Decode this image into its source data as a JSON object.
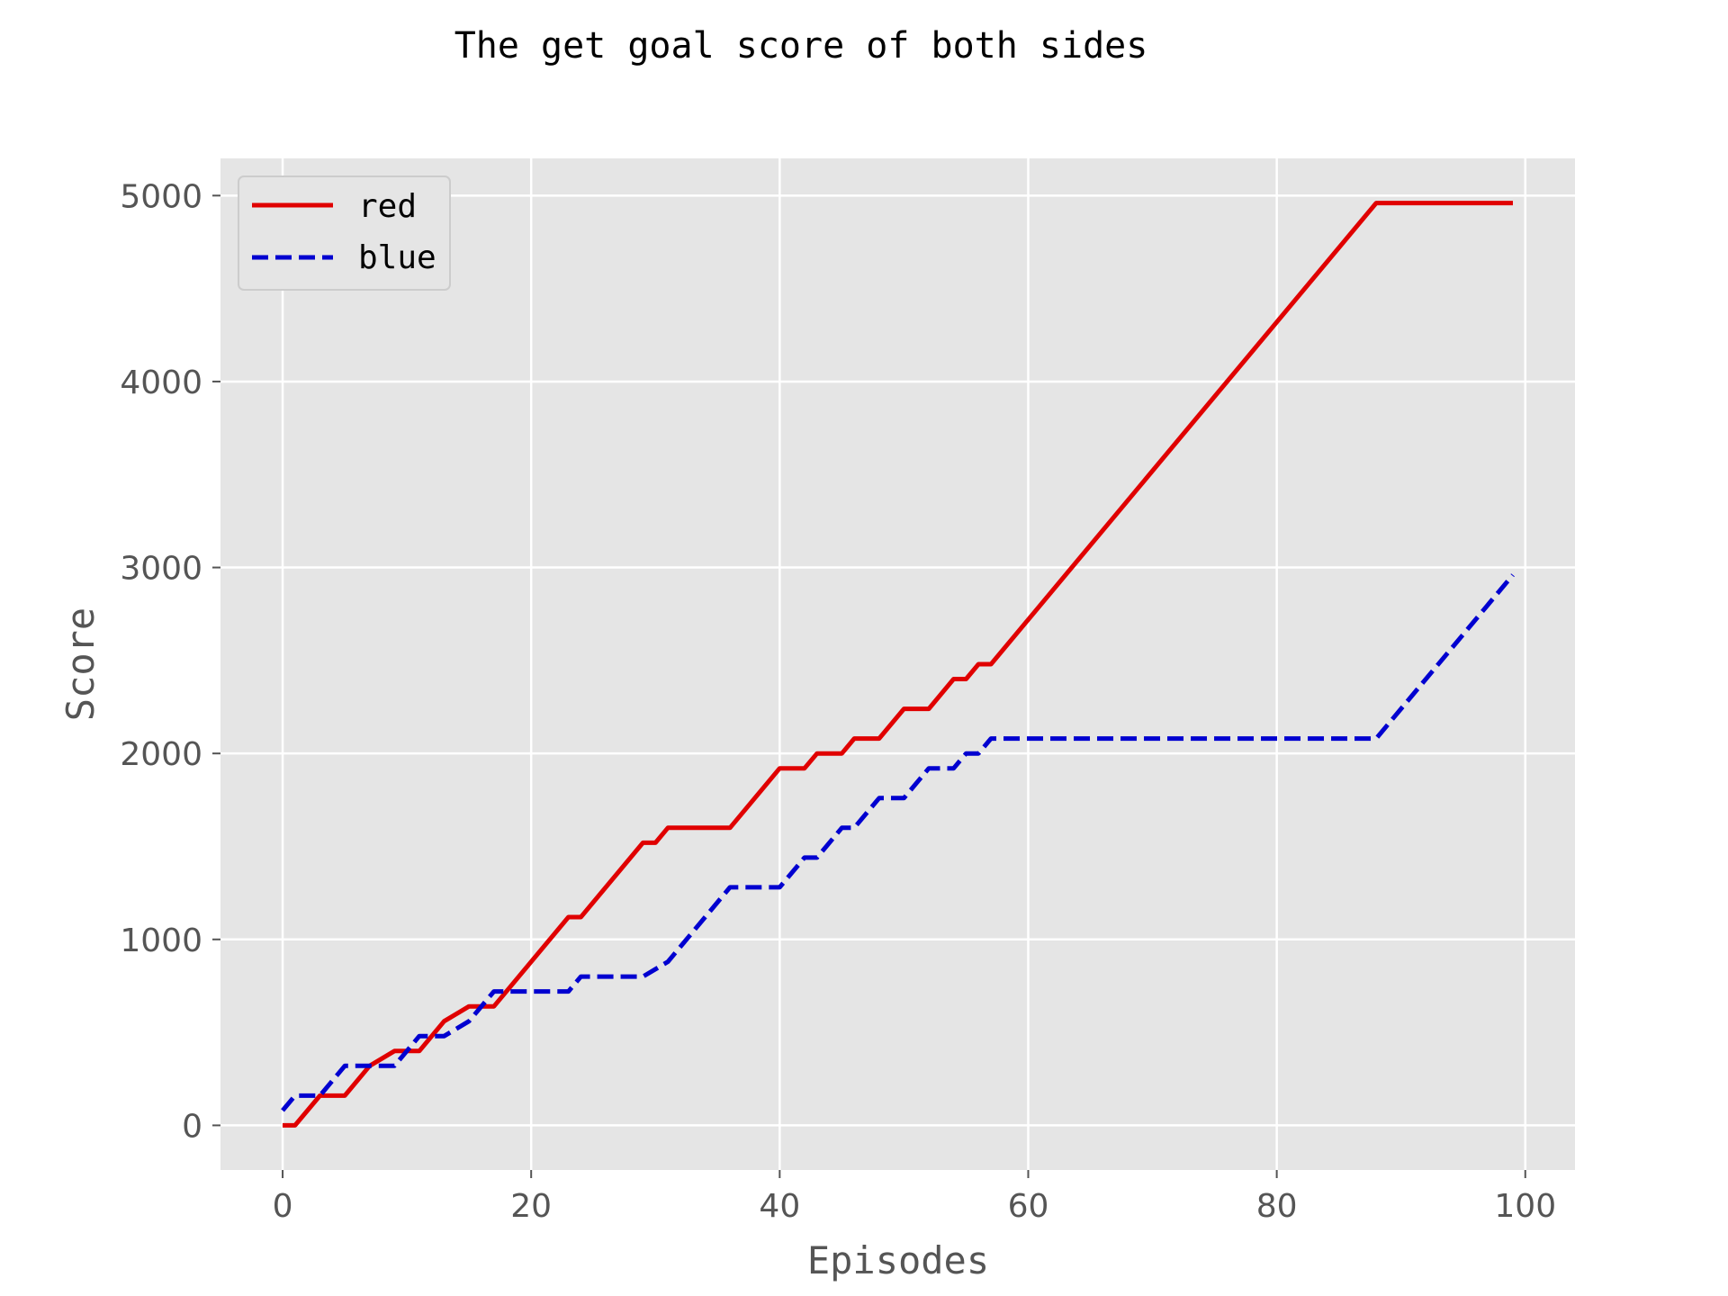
{
  "chart_data": {
    "type": "line",
    "title": "The get goal score of both sides",
    "xlabel": "Episodes",
    "ylabel": "Score",
    "xlim": [
      -5,
      104
    ],
    "ylim": [
      -240,
      5200
    ],
    "xticks": [
      0,
      20,
      40,
      60,
      80,
      100
    ],
    "yticks": [
      0,
      1000,
      2000,
      3000,
      4000,
      5000
    ],
    "xtick_labels": [
      "0",
      "20",
      "40",
      "60",
      "80",
      "100"
    ],
    "ytick_labels": [
      "0",
      "1000",
      "2000",
      "3000",
      "4000",
      "5000"
    ],
    "grid": true,
    "legend_position": "top-left",
    "background": "#e5e5e5",
    "series": [
      {
        "name": "red",
        "color": "#e00000",
        "style": "solid",
        "x": [
          0,
          1,
          3,
          5,
          7,
          9,
          11,
          13,
          15,
          17,
          23,
          24,
          29,
          30,
          31,
          36,
          40,
          42,
          43,
          45,
          46,
          48,
          50,
          52,
          54,
          55,
          56,
          57,
          88,
          99
        ],
        "y": [
          0,
          0,
          160,
          160,
          320,
          400,
          400,
          560,
          640,
          640,
          1120,
          1120,
          1520,
          1520,
          1600,
          1600,
          1920,
          1920,
          2000,
          2000,
          2080,
          2080,
          2240,
          2240,
          2400,
          2400,
          2480,
          2480,
          4960,
          4960
        ]
      },
      {
        "name": "blue",
        "color": "#0000d0",
        "style": "dashed",
        "x": [
          0,
          1,
          3,
          5,
          7,
          9,
          11,
          13,
          15,
          17,
          23,
          24,
          29,
          31,
          36,
          40,
          42,
          43,
          45,
          46,
          48,
          50,
          52,
          54,
          55,
          56,
          57,
          88,
          99
        ],
        "y": [
          80,
          160,
          160,
          320,
          320,
          320,
          480,
          480,
          560,
          720,
          720,
          800,
          800,
          880,
          1280,
          1280,
          1440,
          1440,
          1600,
          1600,
          1760,
          1760,
          1920,
          1920,
          2000,
          2000,
          2080,
          2080,
          2960
        ]
      }
    ]
  }
}
